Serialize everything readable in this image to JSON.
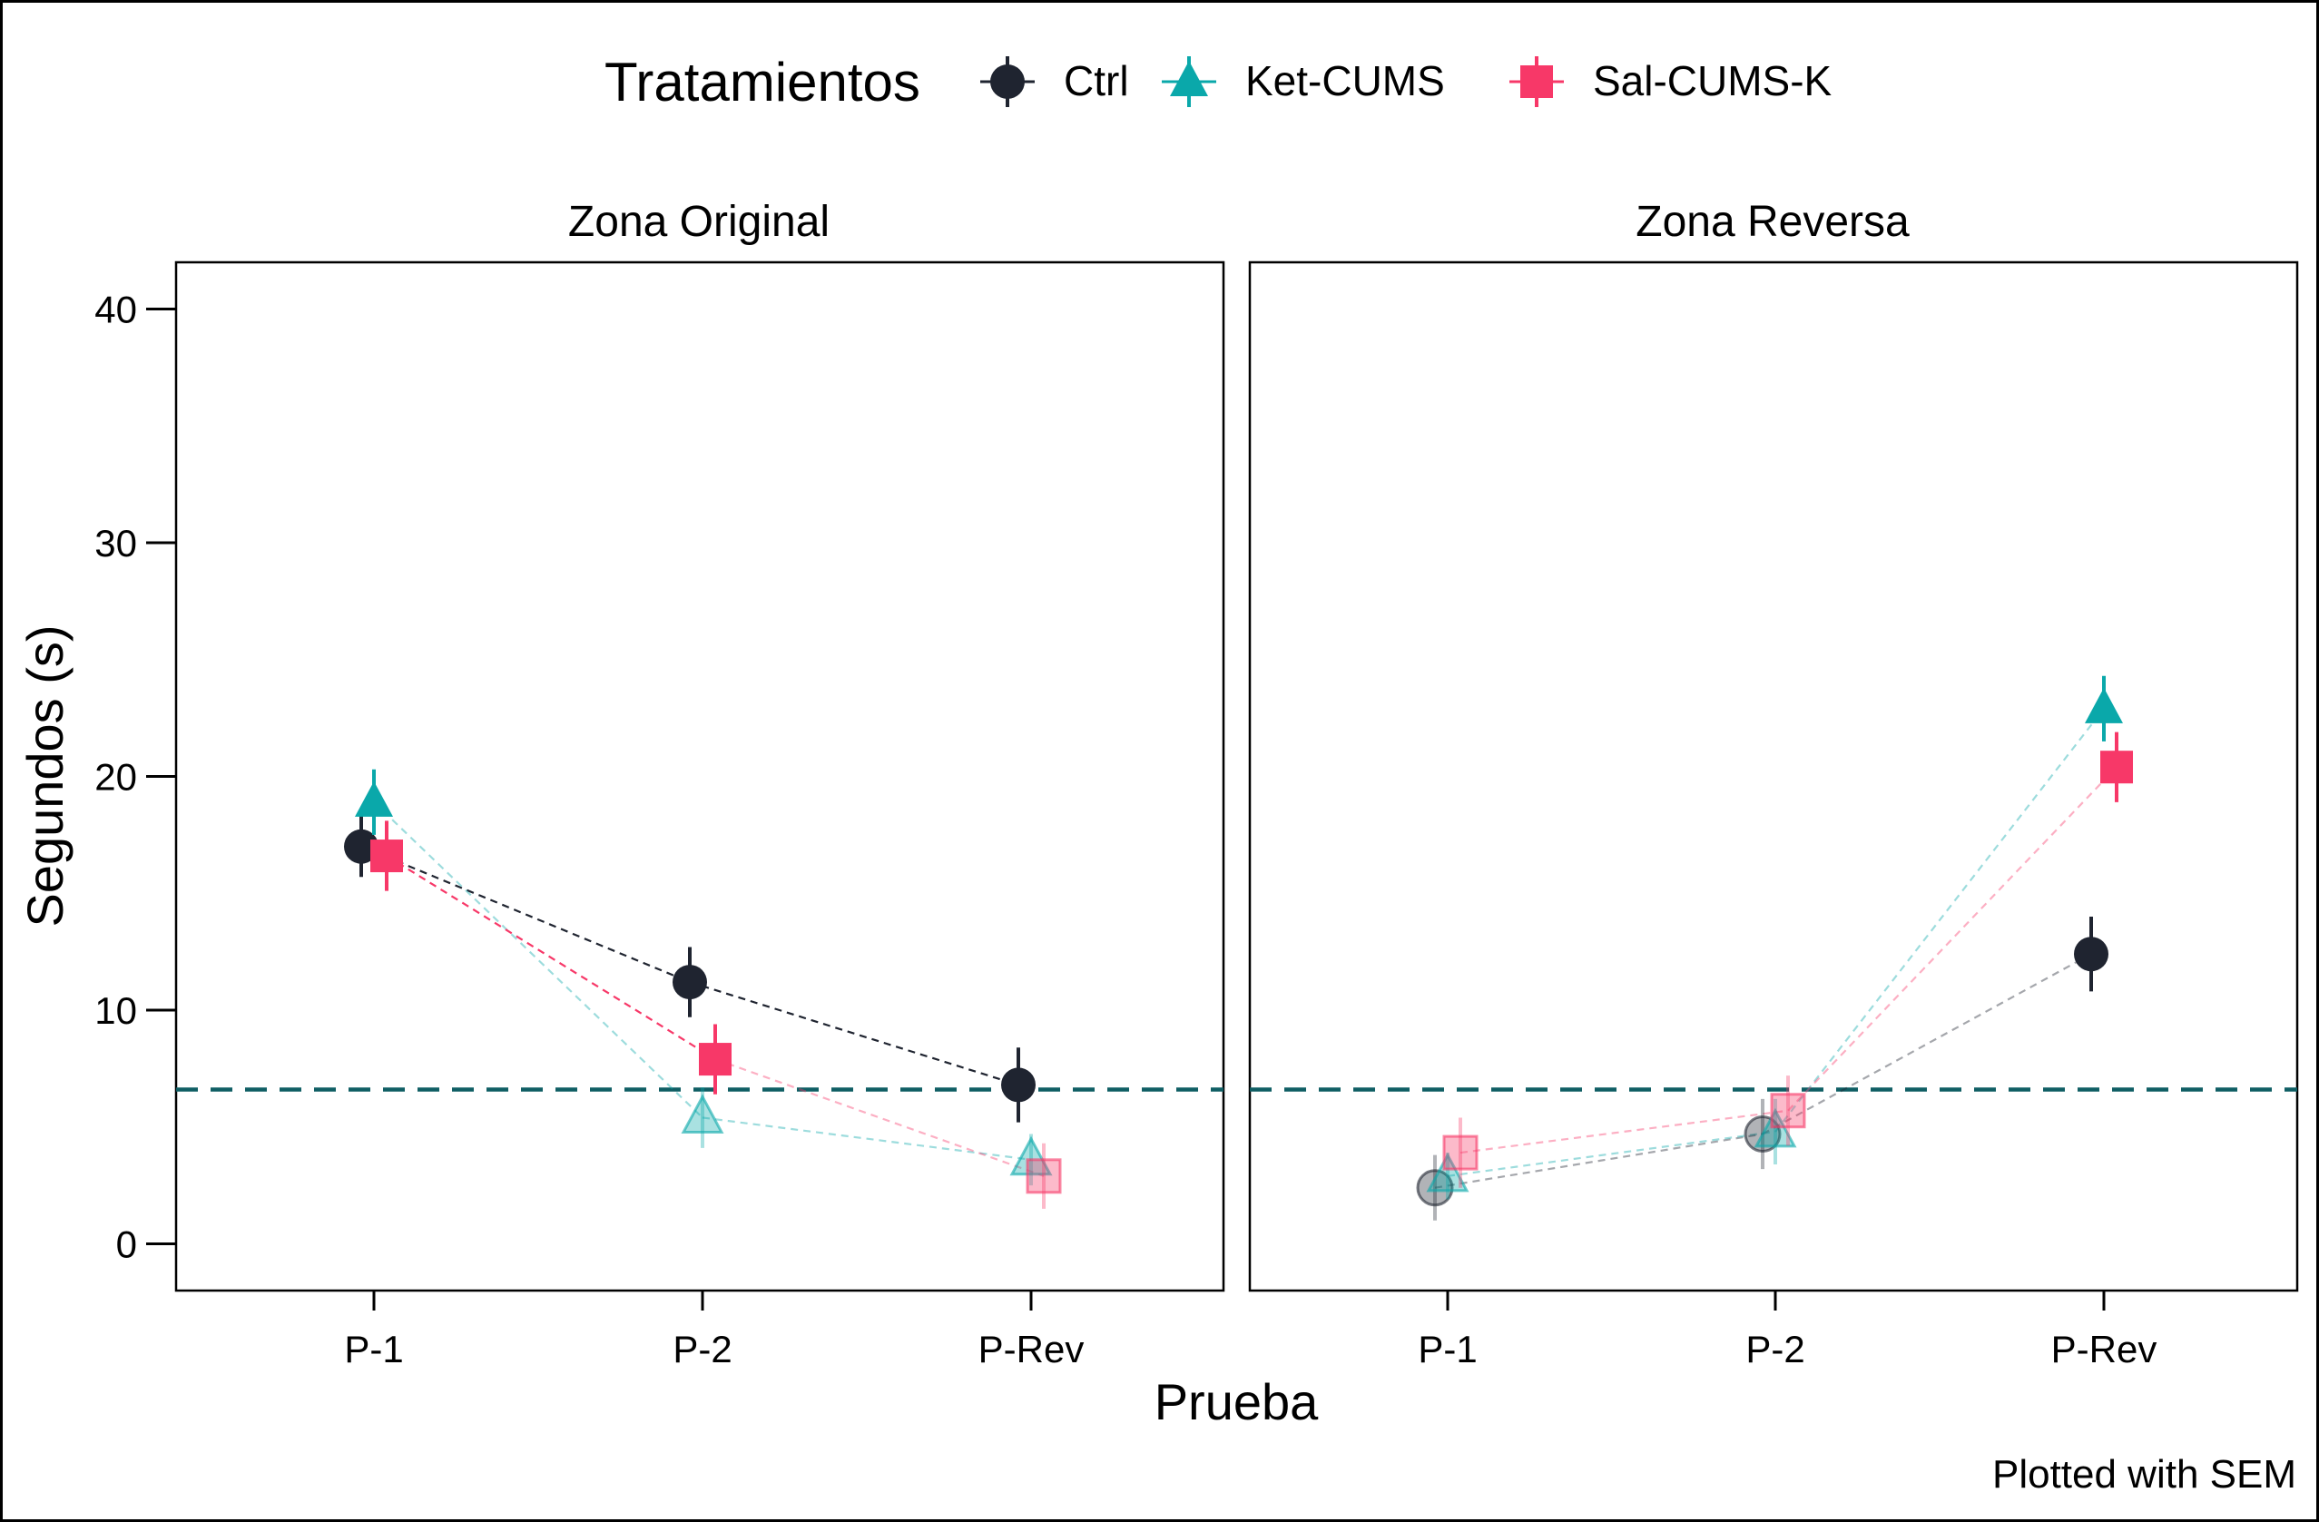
{
  "legend": {
    "title": "Tratamientos",
    "items": [
      {
        "label": "Ctrl",
        "color": "#1f2430",
        "shape": "circle"
      },
      {
        "label": "Ket-CUMS",
        "color": "#0aa8aa",
        "shape": "triangle"
      },
      {
        "label": "Sal-CUMS-K",
        "color": "#f73868",
        "shape": "square"
      }
    ]
  },
  "caption": "Plotted with SEM",
  "reference_line_color": "#0f5e64",
  "chart_data": {
    "type": "line",
    "xlabel": "Prueba",
    "ylabel": "Segundos (s)",
    "categories": [
      "P-1",
      "P-2",
      "P-Rev"
    ],
    "ylim": [
      -2,
      42
    ],
    "yticks": [
      0,
      10,
      20,
      30,
      40
    ],
    "grid": false,
    "legend_position": "top",
    "reference_line": 6.6,
    "error_bars": "SEM",
    "panels": [
      {
        "title": "Zona Original",
        "series": [
          {
            "name": "Ctrl",
            "values": [
              17.0,
              11.2,
              6.8
            ],
            "sem": [
              1.3,
              1.5,
              1.6
            ],
            "faded": [
              false,
              false,
              false
            ]
          },
          {
            "name": "Ket-CUMS",
            "values": [
              18.9,
              5.4,
              3.6
            ],
            "sem": [
              1.4,
              1.3,
              1.1
            ],
            "faded": [
              false,
              true,
              true
            ]
          },
          {
            "name": "Sal-CUMS-K",
            "values": [
              16.6,
              7.9,
              2.9
            ],
            "sem": [
              1.5,
              1.5,
              1.4
            ],
            "faded": [
              false,
              false,
              true
            ]
          }
        ]
      },
      {
        "title": "Zona Reversa",
        "series": [
          {
            "name": "Ctrl",
            "values": [
              2.4,
              4.7,
              12.4
            ],
            "sem": [
              1.4,
              1.5,
              1.6
            ],
            "faded": [
              true,
              true,
              false
            ]
          },
          {
            "name": "Ket-CUMS",
            "values": [
              2.9,
              4.8,
              22.9
            ],
            "sem": [
              1.0,
              1.4,
              1.4
            ],
            "faded": [
              true,
              true,
              false
            ]
          },
          {
            "name": "Sal-CUMS-K",
            "values": [
              3.9,
              5.7,
              20.4
            ],
            "sem": [
              1.5,
              1.5,
              1.5
            ],
            "faded": [
              true,
              true,
              false
            ]
          }
        ]
      }
    ]
  }
}
